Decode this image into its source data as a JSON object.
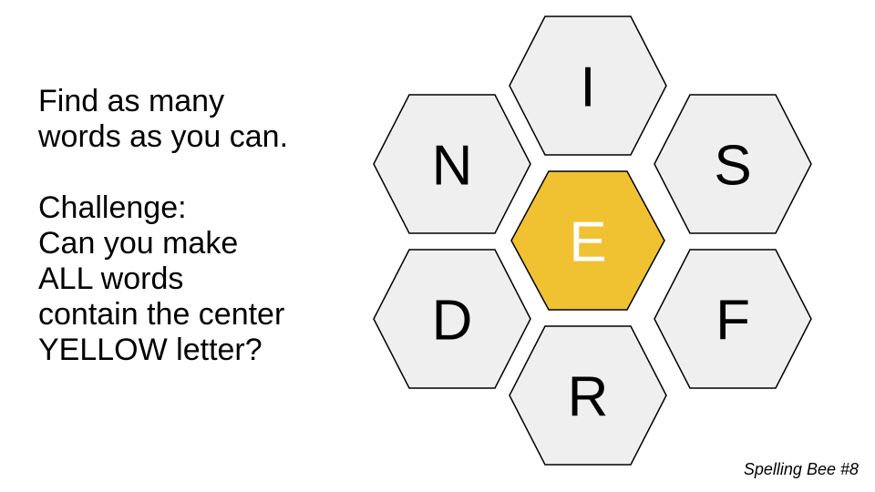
{
  "instructions": {
    "paragraph_1": [
      "Find as many",
      "words as you can."
    ],
    "paragraph_2": [
      "Challenge:",
      "Can you make",
      "ALL words",
      "contain the center",
      "YELLOW letter?"
    ]
  },
  "puzzle": {
    "center_letter": "E",
    "outer_letters": {
      "top": "I",
      "upper_left": "N",
      "upper_right": "S",
      "lower_left": "D",
      "lower_right": "F",
      "bottom": "R"
    },
    "colors": {
      "center_fill": "#F0C232",
      "outer_fill": "#EFEFEF",
      "center_text": "#FFFFFF",
      "outer_text": "#000000",
      "border": "#000000"
    }
  },
  "caption": "Spelling Bee #8"
}
